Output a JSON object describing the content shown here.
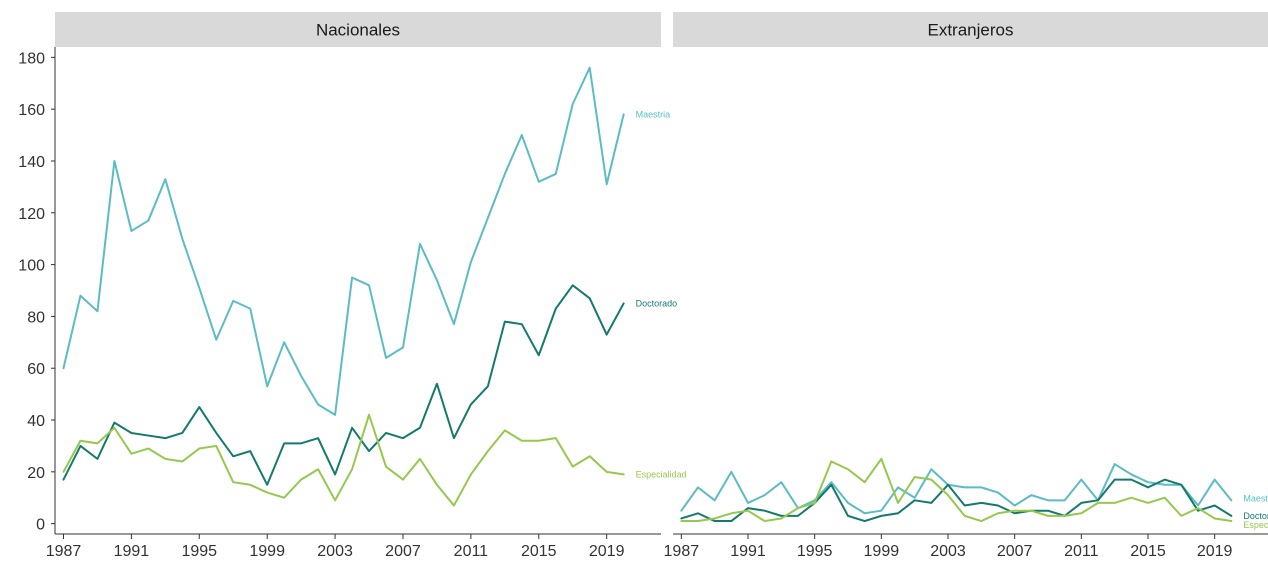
{
  "chart_data": {
    "type": "line",
    "x": [
      1987,
      1988,
      1989,
      1990,
      1991,
      1992,
      1993,
      1994,
      1995,
      1996,
      1997,
      1998,
      1999,
      2000,
      2001,
      2002,
      2003,
      2004,
      2005,
      2006,
      2007,
      2008,
      2009,
      2010,
      2011,
      2012,
      2013,
      2014,
      2015,
      2016,
      2017,
      2018,
      2019,
      2020
    ],
    "x_ticks": [
      1987,
      1991,
      1995,
      1999,
      2003,
      2007,
      2011,
      2015,
      2019
    ],
    "y_ticks": [
      0,
      20,
      40,
      60,
      80,
      100,
      120,
      140,
      160,
      180
    ],
    "ylim": [
      -4,
      184
    ],
    "xlim": [
      1986.5,
      2022.2
    ],
    "grid": false,
    "colors": {
      "Maestria": "#5bbcc6",
      "Doctorado": "#157a6e",
      "Especialidad": "#95c94d"
    },
    "panels": [
      {
        "title": "Nacionales",
        "series": [
          {
            "name": "Maestria",
            "label": "Maestria",
            "values": [
              60,
              88,
              82,
              140,
              113,
              117,
              133,
              110,
              91,
              71,
              86,
              83,
              53,
              70,
              57,
              46,
              42,
              95,
              92,
              64,
              68,
              108,
              94,
              77,
              101,
              118,
              135,
              150,
              132,
              135,
              162,
              176,
              131,
              158
            ]
          },
          {
            "name": "Doctorado",
            "label": "Doctorado",
            "values": [
              17,
              30,
              25,
              39,
              35,
              34,
              33,
              35,
              45,
              35,
              26,
              28,
              15,
              31,
              31,
              33,
              19,
              37,
              28,
              35,
              33,
              37,
              54,
              33,
              46,
              53,
              78,
              77,
              65,
              83,
              92,
              87,
              73,
              85
            ]
          },
          {
            "name": "Especialidad",
            "label": "Especialidad",
            "values": [
              20,
              32,
              31,
              37,
              27,
              29,
              25,
              24,
              29,
              30,
              16,
              15,
              12,
              10,
              17,
              21,
              9,
              21,
              42,
              22,
              17,
              25,
              15,
              7,
              19,
              28,
              36,
              32,
              32,
              33,
              22,
              26,
              20,
              19
            ]
          }
        ]
      },
      {
        "title": "Extranjeros",
        "series": [
          {
            "name": "Maestria",
            "label": "Maestria",
            "values": [
              5,
              14,
              9,
              20,
              8,
              11,
              16,
              6,
              9,
              16,
              8,
              4,
              5,
              14,
              10,
              21,
              15,
              14,
              14,
              12,
              7,
              11,
              9,
              9,
              17,
              9,
              23,
              19,
              16,
              15,
              15,
              7,
              17,
              9
            ]
          },
          {
            "name": "Doctorado",
            "label": "Doctorado",
            "values": [
              2,
              4,
              1,
              1,
              6,
              5,
              3,
              3,
              8,
              15,
              3,
              1,
              3,
              4,
              9,
              8,
              15,
              7,
              8,
              7,
              4,
              5,
              5,
              3,
              8,
              9,
              17,
              17,
              14,
              17,
              15,
              5,
              7,
              3
            ]
          },
          {
            "name": "Especialidad",
            "label": "Especialidad",
            "values": [
              1,
              1,
              2,
              4,
              5,
              1,
              2,
              6,
              8,
              24,
              21,
              16,
              25,
              8,
              18,
              17,
              11,
              3,
              1,
              4,
              5,
              5,
              3,
              3,
              4,
              8,
              8,
              10,
              8,
              10,
              3,
              6,
              2,
              1
            ]
          }
        ]
      }
    ]
  }
}
